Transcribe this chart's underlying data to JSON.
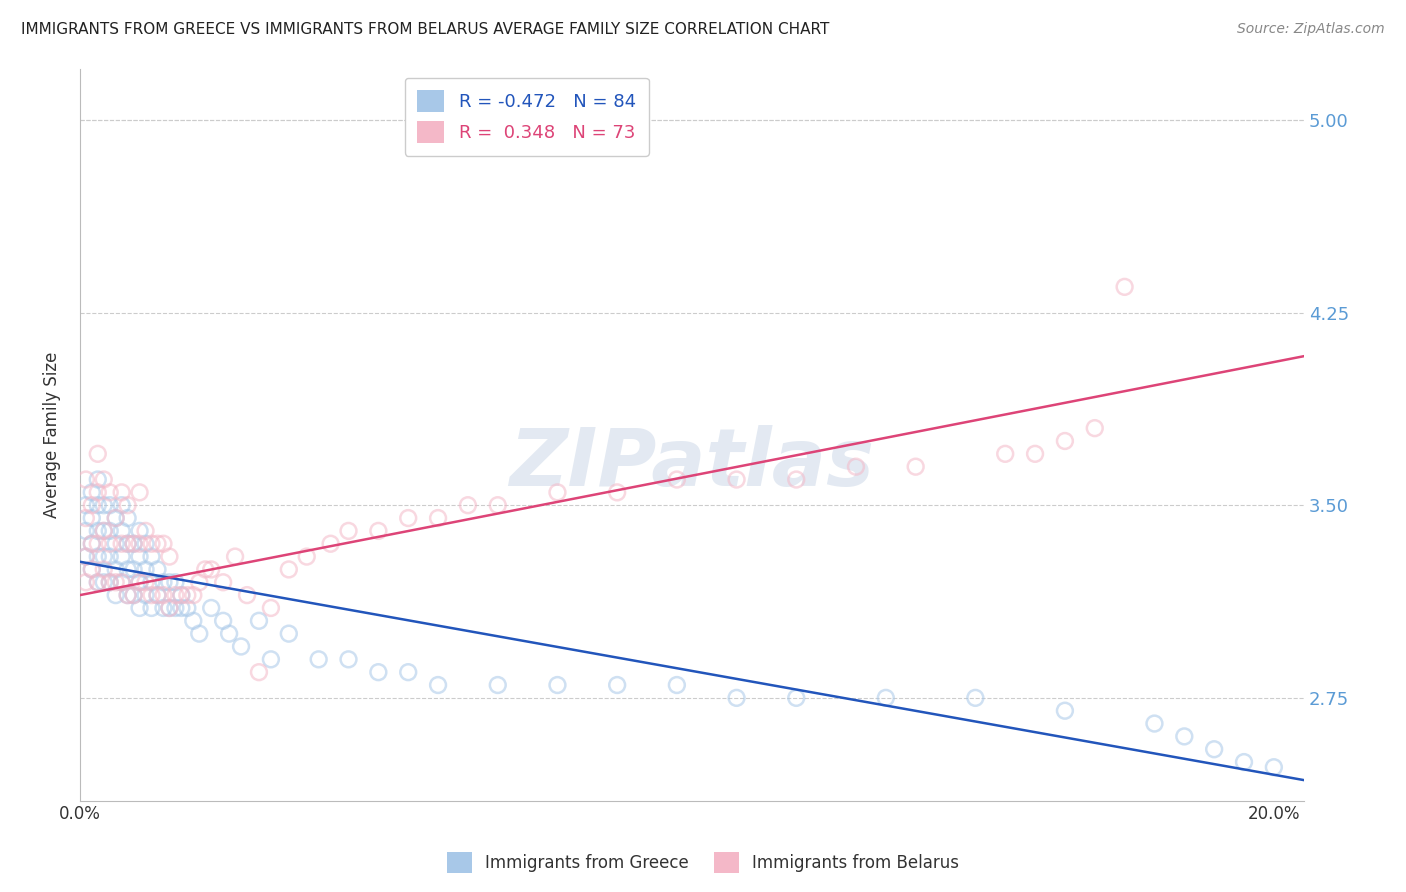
{
  "title": "IMMIGRANTS FROM GREECE VS IMMIGRANTS FROM BELARUS AVERAGE FAMILY SIZE CORRELATION CHART",
  "source": "Source: ZipAtlas.com",
  "ylabel": "Average Family Size",
  "yticks": [
    2.75,
    3.5,
    4.25,
    5.0
  ],
  "xlim": [
    0.0,
    0.205
  ],
  "ylim": [
    2.35,
    5.2
  ],
  "watermark": "ZIPatlas",
  "legend_r_blue": "-0.472",
  "legend_n_blue": "84",
  "legend_r_pink": "0.348",
  "legend_n_pink": "73",
  "blue_color": "#a8c8e8",
  "pink_color": "#f4b8c8",
  "line_blue": "#2255bb",
  "line_pink": "#dd4477",
  "blue_scatter_x": [
    0.001,
    0.001,
    0.001,
    0.002,
    0.002,
    0.002,
    0.002,
    0.003,
    0.003,
    0.003,
    0.003,
    0.003,
    0.004,
    0.004,
    0.004,
    0.004,
    0.005,
    0.005,
    0.005,
    0.005,
    0.006,
    0.006,
    0.006,
    0.006,
    0.007,
    0.007,
    0.007,
    0.007,
    0.008,
    0.008,
    0.008,
    0.008,
    0.009,
    0.009,
    0.009,
    0.01,
    0.01,
    0.01,
    0.01,
    0.011,
    0.011,
    0.011,
    0.012,
    0.012,
    0.012,
    0.013,
    0.013,
    0.014,
    0.014,
    0.015,
    0.015,
    0.016,
    0.016,
    0.017,
    0.017,
    0.018,
    0.019,
    0.02,
    0.022,
    0.024,
    0.025,
    0.027,
    0.03,
    0.032,
    0.035,
    0.04,
    0.045,
    0.05,
    0.055,
    0.06,
    0.07,
    0.08,
    0.09,
    0.1,
    0.11,
    0.12,
    0.135,
    0.15,
    0.165,
    0.18,
    0.185,
    0.19,
    0.195,
    0.2
  ],
  "blue_scatter_y": [
    3.3,
    3.4,
    3.5,
    3.25,
    3.35,
    3.45,
    3.55,
    3.2,
    3.3,
    3.4,
    3.5,
    3.6,
    3.2,
    3.3,
    3.4,
    3.5,
    3.2,
    3.3,
    3.4,
    3.5,
    3.15,
    3.25,
    3.35,
    3.45,
    3.2,
    3.3,
    3.4,
    3.5,
    3.15,
    3.25,
    3.35,
    3.45,
    3.15,
    3.25,
    3.35,
    3.1,
    3.2,
    3.3,
    3.4,
    3.15,
    3.25,
    3.35,
    3.1,
    3.2,
    3.3,
    3.15,
    3.25,
    3.1,
    3.2,
    3.1,
    3.2,
    3.1,
    3.2,
    3.1,
    3.15,
    3.1,
    3.05,
    3.0,
    3.1,
    3.05,
    3.0,
    2.95,
    3.05,
    2.9,
    3.0,
    2.9,
    2.9,
    2.85,
    2.85,
    2.8,
    2.8,
    2.8,
    2.8,
    2.8,
    2.75,
    2.75,
    2.75,
    2.75,
    2.7,
    2.65,
    2.6,
    2.55,
    2.5,
    2.48
  ],
  "pink_scatter_x": [
    0.001,
    0.001,
    0.001,
    0.001,
    0.002,
    0.002,
    0.002,
    0.003,
    0.003,
    0.003,
    0.003,
    0.004,
    0.004,
    0.004,
    0.005,
    0.005,
    0.005,
    0.006,
    0.006,
    0.007,
    0.007,
    0.007,
    0.008,
    0.008,
    0.008,
    0.009,
    0.009,
    0.01,
    0.01,
    0.01,
    0.011,
    0.011,
    0.012,
    0.012,
    0.013,
    0.013,
    0.014,
    0.014,
    0.015,
    0.015,
    0.016,
    0.017,
    0.018,
    0.019,
    0.02,
    0.021,
    0.022,
    0.024,
    0.026,
    0.028,
    0.03,
    0.032,
    0.035,
    0.038,
    0.042,
    0.045,
    0.05,
    0.055,
    0.06,
    0.065,
    0.07,
    0.08,
    0.09,
    0.1,
    0.11,
    0.12,
    0.13,
    0.14,
    0.155,
    0.16,
    0.165,
    0.17,
    0.175
  ],
  "pink_scatter_y": [
    3.2,
    3.3,
    3.45,
    3.6,
    3.25,
    3.35,
    3.5,
    3.2,
    3.35,
    3.55,
    3.7,
    3.25,
    3.4,
    3.6,
    3.2,
    3.35,
    3.55,
    3.2,
    3.45,
    3.2,
    3.35,
    3.55,
    3.15,
    3.35,
    3.5,
    3.15,
    3.35,
    3.2,
    3.35,
    3.55,
    3.2,
    3.4,
    3.15,
    3.35,
    3.15,
    3.35,
    3.15,
    3.35,
    3.1,
    3.3,
    3.15,
    3.15,
    3.15,
    3.15,
    3.2,
    3.25,
    3.25,
    3.2,
    3.3,
    3.15,
    2.85,
    3.1,
    3.25,
    3.3,
    3.35,
    3.4,
    3.4,
    3.45,
    3.45,
    3.5,
    3.5,
    3.55,
    3.55,
    3.6,
    3.6,
    3.6,
    3.65,
    3.65,
    3.7,
    3.7,
    3.75,
    3.8,
    4.35
  ],
  "blue_line_x": [
    0.0,
    0.205
  ],
  "blue_line_y": [
    3.28,
    2.43
  ],
  "pink_line_x": [
    0.0,
    0.205
  ],
  "pink_line_y": [
    3.15,
    4.08
  ],
  "background_color": "#ffffff",
  "grid_color": "#cccccc",
  "title_color": "#222222",
  "right_axis_color": "#5b9bd5",
  "marker_size": 130,
  "marker_alpha": 0.55
}
